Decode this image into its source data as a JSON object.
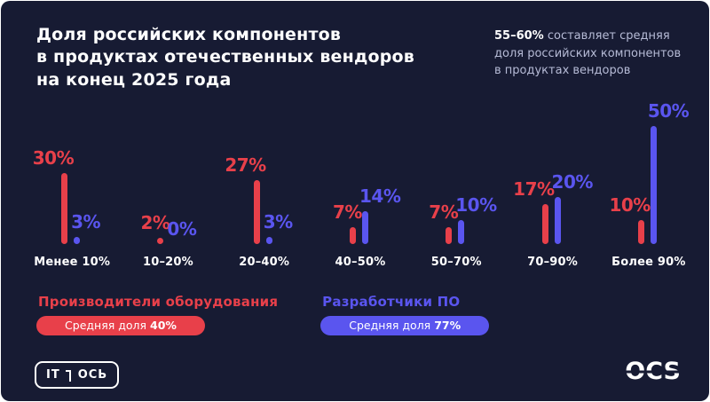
{
  "page": {
    "bg": "#171b33",
    "accent_red": "#e8404a",
    "accent_blue": "#5a55ef",
    "muted_text": "#b6bbd6"
  },
  "header": {
    "title": "Доля российских компонентов\nв продуктах отечественных вендоров\nна конец 2025 года",
    "highlight_value": "55–60%",
    "highlight_text": "составляет средняя\nдоля российских компонентов\nв продуктах вендоров"
  },
  "chart_data": {
    "type": "bar",
    "title": "Доля российских компонентов в продуктах отечественных вендоров на конец 2025 года",
    "categories": [
      "Менее 10%",
      "10–20%",
      "20–40%",
      "40–50%",
      "50–70%",
      "70–90%",
      "Более 90%"
    ],
    "series": [
      {
        "name": "Производители оборудования",
        "color": "#e8404a",
        "values": [
          30,
          2,
          27,
          7,
          7,
          17,
          10
        ],
        "average_label": "Средняя доля",
        "average": "40%"
      },
      {
        "name": "Разработчики ПО",
        "color": "#5a55ef",
        "values": [
          3,
          0,
          3,
          14,
          10,
          20,
          50
        ],
        "average_label": "Средняя доля",
        "average": "77%"
      }
    ],
    "value_suffix": "%",
    "xlabel": "",
    "ylabel": "",
    "ylim": [
      0,
      50
    ],
    "grid": false,
    "legend_position": "bottom-left"
  },
  "footer": {
    "logo_left_part1": "IT",
    "logo_left_part2": "ОСЬ",
    "logo_right": "OCS"
  }
}
